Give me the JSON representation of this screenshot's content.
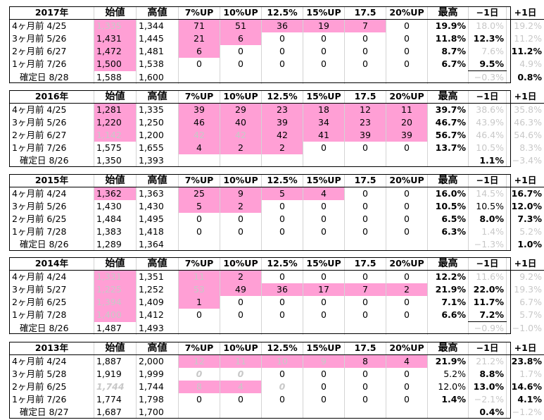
{
  "headers": {
    "open": "始値",
    "high": "高値",
    "p7": "7%UP",
    "p10": "10%UP",
    "p125": "12.5%",
    "p15": "15%UP",
    "p175": "17.5",
    "p20": "20%UP",
    "best": "最高",
    "minus1": "−1日",
    "plus1": "+1日"
  },
  "blocks": [
    {
      "year": "2017年",
      "rows": [
        {
          "label": "4ヶ月前  4/25",
          "open": "1,335",
          "high": "1,344",
          "p7": "71",
          "p10": "51",
          "p125": "36",
          "p15": "19",
          "p175": "7",
          "p20": "0",
          "best": "19.9%",
          "m1": "18.0%",
          "p1": "19.2%"
        },
        {
          "label": "3ヶ月前  5/26",
          "open": "1,431",
          "high": "1,445",
          "p7": "21",
          "p10": "6",
          "p125": "0",
          "p15": "0",
          "p175": "0",
          "p20": "0",
          "best": "11.8%",
          "m1": "12.3%",
          "p1": "11.2%"
        },
        {
          "label": "2ヶ月前  6/27",
          "open": "1,472",
          "high": "1,481",
          "p7": "6",
          "p10": "0",
          "p125": "0",
          "p15": "0",
          "p175": "0",
          "p20": "0",
          "best": "8.7%",
          "m1": "7.6%",
          "p1": "11.2%"
        },
        {
          "label": "1ヶ月前  7/26",
          "open": "1,500",
          "high": "1,538",
          "p7": "0",
          "p10": "0",
          "p125": "0",
          "p15": "0",
          "p175": "0",
          "p20": "0",
          "best": "6.7%",
          "m1": "9.5%",
          "p1": "4.9%"
        },
        {
          "label": "確定日  8/28",
          "open": "1,588",
          "high": "1,600",
          "p7": "",
          "p10": "",
          "p125": "",
          "p15": "",
          "p175": "",
          "p20": "",
          "best": "",
          "m1": "−0.3%",
          "p1": "0.8%"
        }
      ]
    },
    {
      "year": "2016年",
      "rows": [
        {
          "label": "4ヶ月前  4/25",
          "open": "1,281",
          "high": "1,335",
          "p7": "39",
          "p10": "29",
          "p125": "23",
          "p15": "18",
          "p175": "12",
          "p20": "11",
          "best": "39.7%",
          "m1": "38.6%",
          "p1": "35.8%"
        },
        {
          "label": "3ヶ月前  5/26",
          "open": "1,220",
          "high": "1,250",
          "p7": "46",
          "p10": "40",
          "p125": "39",
          "p15": "34",
          "p175": "23",
          "p20": "20",
          "best": "46.7%",
          "m1": "43.9%",
          "p1": "46.3%"
        },
        {
          "label": "2ヶ月前  6/27",
          "open": "1,142",
          "high": "1,200",
          "p7": "42",
          "p10": "42",
          "p125": "42",
          "p15": "41",
          "p175": "39",
          "p20": "39",
          "best": "56.7%",
          "m1": "46.4%",
          "p1": "54.6%"
        },
        {
          "label": "1ヶ月前  7/26",
          "open": "1,575",
          "high": "1,655",
          "p7": "4",
          "p10": "2",
          "p125": "2",
          "p15": "0",
          "p175": "0",
          "p20": "0",
          "best": "13.7%",
          "m1": "10.5%",
          "p1": "8.3%"
        },
        {
          "label": "確定日  8/26",
          "open": "1,350",
          "high": "1,393",
          "p7": "",
          "p10": "",
          "p125": "",
          "p15": "",
          "p175": "",
          "p20": "",
          "best": "",
          "m1": "1.1%",
          "p1": "−3.4%"
        }
      ]
    },
    {
      "year": "2015年",
      "rows": [
        {
          "label": "4ヶ月前  4/24",
          "open": "1,362",
          "high": "1,363",
          "p7": "25",
          "p10": "9",
          "p125": "5",
          "p15": "4",
          "p175": "0",
          "p20": "0",
          "best": "16.0%",
          "m1": "14.5%",
          "p1": "16.7%"
        },
        {
          "label": "3ヶ月前  5/26",
          "open": "1,430",
          "high": "1,430",
          "p7": "5",
          "p10": "2",
          "p125": "0",
          "p15": "0",
          "p175": "0",
          "p20": "0",
          "best": "10.5%",
          "m1": "10.5%",
          "p1": "12.0%"
        },
        {
          "label": "2ヶ月前  6/25",
          "open": "1,484",
          "high": "1,495",
          "p7": "0",
          "p10": "0",
          "p125": "0",
          "p15": "0",
          "p175": "0",
          "p20": "0",
          "best": "6.5%",
          "m1": "8.0%",
          "p1": "7.3%"
        },
        {
          "label": "1ヶ月前  7/28",
          "open": "1,383",
          "high": "1,418",
          "p7": "0",
          "p10": "0",
          "p125": "0",
          "p15": "0",
          "p175": "0",
          "p20": "0",
          "best": "6.3%",
          "m1": "1.4%",
          "p1": "5.2%"
        },
        {
          "label": "確定日  8/26",
          "open": "1,289",
          "high": "1,364",
          "p7": "",
          "p10": "",
          "p125": "",
          "p15": "",
          "p175": "",
          "p20": "",
          "best": "",
          "m1": "−1.3%",
          "p1": "1.0%"
        }
      ]
    },
    {
      "year": "2014年",
      "rows": [
        {
          "label": "4ヶ月前  4/24",
          "open": "1,331",
          "high": "1,351",
          "p7": "11",
          "p10": "2",
          "p125": "0",
          "p15": "0",
          "p175": "0",
          "p20": "0",
          "best": "12.2%",
          "m1": "11.6%",
          "p1": "9.2%"
        },
        {
          "label": "3ヶ月前  5/27",
          "open": "1,225",
          "high": "1,252",
          "p7": "53",
          "p10": "49",
          "p125": "36",
          "p15": "17",
          "p175": "7",
          "p20": "2",
          "best": "21.9%",
          "m1": "22.0%",
          "p1": "19.3%"
        },
        {
          "label": "2ヶ月前  6/25",
          "open": "1,394",
          "high": "1,409",
          "p7": "1",
          "p10": "0",
          "p125": "0",
          "p15": "0",
          "p175": "0",
          "p20": "0",
          "best": "7.1%",
          "m1": "11.7%",
          "p1": "6.7%"
        },
        {
          "label": "1ヶ月前  7/28",
          "open": "1,400",
          "high": "1,412",
          "p7": "0",
          "p10": "0",
          "p125": "0",
          "p15": "0",
          "p175": "0",
          "p20": "0",
          "best": "6.6%",
          "m1": "7.2%",
          "p1": "5.7%"
        },
        {
          "label": "確定日  8/26",
          "open": "1,487",
          "high": "1,493",
          "p7": "",
          "p10": "",
          "p125": "",
          "p15": "",
          "p175": "",
          "p20": "",
          "best": "",
          "m1": "−0.9%",
          "p1": "−1.0%"
        }
      ]
    },
    {
      "year": "2013年",
      "rows": [
        {
          "label": "4ヶ月前  4/24",
          "open": "1,887",
          "high": "2,000",
          "p7": "12",
          "p10": "11",
          "p125": "10",
          "p15": "9",
          "p175": "8",
          "p20": "4",
          "best": "21.9%",
          "m1": "21.2%",
          "p1": "23.8%"
        },
        {
          "label": "3ヶ月前  5/28",
          "open": "1,919",
          "high": "1,999",
          "p7": "0",
          "p10": "0",
          "p125": "0",
          "p15": "0",
          "p175": "0",
          "p20": "0",
          "best": "5.2%",
          "m1": "8.8%",
          "p1": "1.7%"
        },
        {
          "label": "2ヶ月前  6/25",
          "open": "1,744",
          "high": "1,744",
          "p7": "8",
          "p10": "4",
          "p125": "0",
          "p15": "0",
          "p175": "0",
          "p20": "0",
          "best": "12.0%",
          "m1": "13.0%",
          "p1": "14.6%"
        },
        {
          "label": "1ヶ月前  7/26",
          "open": "1,774",
          "high": "1,798",
          "p7": "0",
          "p10": "0",
          "p125": "0",
          "p15": "0",
          "p175": "0",
          "p20": "0",
          "best": "1.4%",
          "m1": "−2.1%",
          "p1": "4.1%"
        },
        {
          "label": "確定日  8/27",
          "open": "1,687",
          "high": "1,700",
          "p7": "",
          "p10": "",
          "p125": "",
          "p15": "",
          "p175": "",
          "p20": "",
          "best": "",
          "m1": "0.4%",
          "p1": "−1.2%"
        }
      ]
    }
  ],
  "colors": {
    "highlight": "#ff9fd5",
    "pale_text": "#c8c8c8",
    "border": "#000000",
    "gridline": "#d4d4d4"
  }
}
